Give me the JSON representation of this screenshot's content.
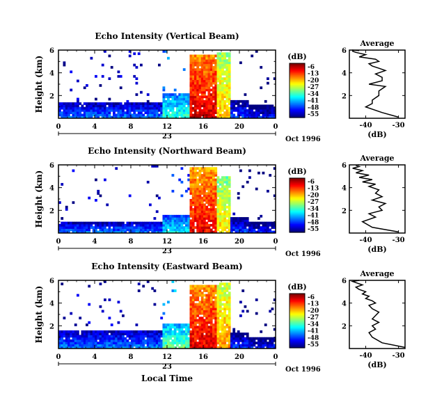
{
  "chart_data": [
    {
      "type": "heatmap",
      "title": "Echo Intensity (Vertical Beam)",
      "ylabel": "Height (km)",
      "xlabel": "",
      "date_label": "Oct 1996",
      "day_label": "23",
      "x_ticks": [
        "0",
        "4",
        "8",
        "12",
        "16",
        "20",
        "0"
      ],
      "y_ticks": [
        "2",
        "4",
        "6"
      ],
      "xlim": [
        0,
        24
      ],
      "ylim": [
        0,
        6
      ],
      "colorbar": {
        "unit": "(dB)",
        "ticks": [
          "-6",
          "-13",
          "-20",
          "-27",
          "-34",
          "-41",
          "-48",
          "-55"
        ]
      },
      "echo_layers": [
        {
          "start_h": 0.0,
          "end_h": 11.5,
          "top_km": 1.2,
          "intensity_db": -45
        },
        {
          "start_h": 11.5,
          "end_h": 14.5,
          "top_km": 2.0,
          "intensity_db": -35
        },
        {
          "start_h": 14.5,
          "end_h": 17.5,
          "top_km": 5.5,
          "intensity_db": -8
        },
        {
          "start_h": 17.5,
          "end_h": 19.0,
          "top_km": 5.8,
          "intensity_db": -20
        },
        {
          "start_h": 19.0,
          "end_h": 21.0,
          "top_km": 1.5,
          "intensity_db": -48
        },
        {
          "start_h": 21.0,
          "end_h": 24.0,
          "top_km": 1.0,
          "intensity_db": -50
        }
      ]
    },
    {
      "type": "heatmap",
      "title": "Echo Intensity (Northward Beam)",
      "ylabel": "Height (km)",
      "xlabel": "",
      "date_label": "Oct 1996",
      "day_label": "23",
      "x_ticks": [
        "0",
        "4",
        "8",
        "12",
        "16",
        "20",
        "0"
      ],
      "y_ticks": [
        "2",
        "4",
        "6"
      ],
      "xlim": [
        0,
        24
      ],
      "ylim": [
        0,
        6
      ],
      "colorbar": {
        "unit": "(dB)",
        "ticks": [
          "-6",
          "-13",
          "-20",
          "-27",
          "-34",
          "-41",
          "-48",
          "-55"
        ]
      },
      "echo_layers": [
        {
          "start_h": 0.0,
          "end_h": 11.5,
          "top_km": 0.8,
          "intensity_db": -45
        },
        {
          "start_h": 11.5,
          "end_h": 14.5,
          "top_km": 1.5,
          "intensity_db": -38
        },
        {
          "start_h": 14.5,
          "end_h": 17.5,
          "top_km": 5.8,
          "intensity_db": -10
        },
        {
          "start_h": 17.5,
          "end_h": 19.0,
          "top_km": 5.0,
          "intensity_db": -22
        },
        {
          "start_h": 19.0,
          "end_h": 21.0,
          "top_km": 1.2,
          "intensity_db": -48
        },
        {
          "start_h": 21.0,
          "end_h": 24.0,
          "top_km": 0.8,
          "intensity_db": -50
        }
      ]
    },
    {
      "type": "heatmap",
      "title": "Echo Intensity (Eastward Beam)",
      "ylabel": "Height (km)",
      "xlabel": "Local Time",
      "date_label": "Oct 1996",
      "day_label": "23",
      "x_ticks": [
        "0",
        "4",
        "8",
        "12",
        "16",
        "20",
        "0"
      ],
      "y_ticks": [
        "2",
        "4",
        "6"
      ],
      "xlim": [
        0,
        24
      ],
      "ylim": [
        0,
        6
      ],
      "colorbar": {
        "unit": "(dB)",
        "ticks": [
          "-6",
          "-13",
          "-20",
          "-27",
          "-34",
          "-41",
          "-48",
          "-55"
        ]
      },
      "echo_layers": [
        {
          "start_h": 0.0,
          "end_h": 11.5,
          "top_km": 1.5,
          "intensity_db": -45
        },
        {
          "start_h": 11.5,
          "end_h": 14.5,
          "top_km": 2.0,
          "intensity_db": -32
        },
        {
          "start_h": 14.5,
          "end_h": 17.5,
          "top_km": 5.5,
          "intensity_db": -9
        },
        {
          "start_h": 17.5,
          "end_h": 19.0,
          "top_km": 5.8,
          "intensity_db": -18
        },
        {
          "start_h": 19.0,
          "end_h": 21.0,
          "top_km": 1.2,
          "intensity_db": -48
        },
        {
          "start_h": 21.0,
          "end_h": 24.0,
          "top_km": 0.8,
          "intensity_db": -50
        }
      ]
    },
    {
      "type": "line",
      "title": "Average",
      "xlabel": "(dB)",
      "x_ticks": [
        "-40",
        "-30"
      ],
      "y_ticks": [
        "2",
        "4",
        "6"
      ],
      "xlim": [
        -45,
        -28
      ],
      "ylim": [
        0,
        6
      ],
      "profile_db": [
        -30,
        -35,
        -40,
        -38,
        -38,
        -36,
        -36,
        -34,
        -39,
        -35,
        -35,
        -37,
        -34,
        -36,
        -38,
        -39,
        -36,
        -37,
        -42,
        -40,
        -43,
        -44,
        -44,
        -42
      ],
      "profile_height_km": [
        0.1,
        0.5,
        1.0,
        1.3,
        1.6,
        2.0,
        2.4,
        2.8,
        3.0,
        3.3,
        3.6,
        3.9,
        4.2,
        4.4,
        4.6,
        4.8,
        5.0,
        5.2,
        5.4,
        5.6,
        5.8,
        5.9,
        6.0,
        5.95
      ]
    },
    {
      "type": "line",
      "title": "Average",
      "xlabel": "(dB)",
      "x_ticks": [
        "-40",
        "-30"
      ],
      "y_ticks": [
        "2",
        "4",
        "6"
      ],
      "xlim": [
        -45,
        -28
      ],
      "ylim": [
        0,
        6
      ],
      "profile_db": [
        -30,
        -38,
        -41,
        -37,
        -39,
        -35,
        -36,
        -34,
        -38,
        -35,
        -37,
        -36,
        -39,
        -37,
        -41,
        -38,
        -42,
        -39,
        -43,
        -41,
        -44,
        -42,
        -43,
        -42
      ],
      "profile_height_km": [
        0.1,
        0.5,
        1.0,
        1.4,
        1.7,
        2.0,
        2.3,
        2.6,
        2.9,
        3.2,
        3.5,
        3.8,
        4.1,
        4.3,
        4.5,
        4.7,
        4.9,
        5.1,
        5.3,
        5.5,
        5.7,
        5.85,
        5.95,
        6.0
      ]
    },
    {
      "type": "line",
      "title": "Average",
      "xlabel": "(dB)",
      "x_ticks": [
        "-40",
        "-30"
      ],
      "y_ticks": [
        "2",
        "4",
        "6"
      ],
      "xlim": [
        -45,
        -28
      ],
      "ylim": [
        0,
        6
      ],
      "profile_db": [
        -28,
        -35,
        -38,
        -39,
        -37,
        -38,
        -36,
        -38,
        -37,
        -36,
        -38,
        -39,
        -37,
        -38,
        -40,
        -39,
        -41,
        -40,
        -42,
        -43,
        -41,
        -43,
        -44,
        -42
      ],
      "profile_height_km": [
        0.1,
        0.5,
        1.0,
        1.4,
        1.7,
        2.0,
        2.3,
        2.6,
        2.9,
        3.2,
        3.5,
        3.8,
        4.0,
        4.2,
        4.4,
        4.6,
        4.8,
        5.0,
        5.2,
        5.4,
        5.6,
        5.8,
        5.9,
        6.0
      ]
    }
  ]
}
